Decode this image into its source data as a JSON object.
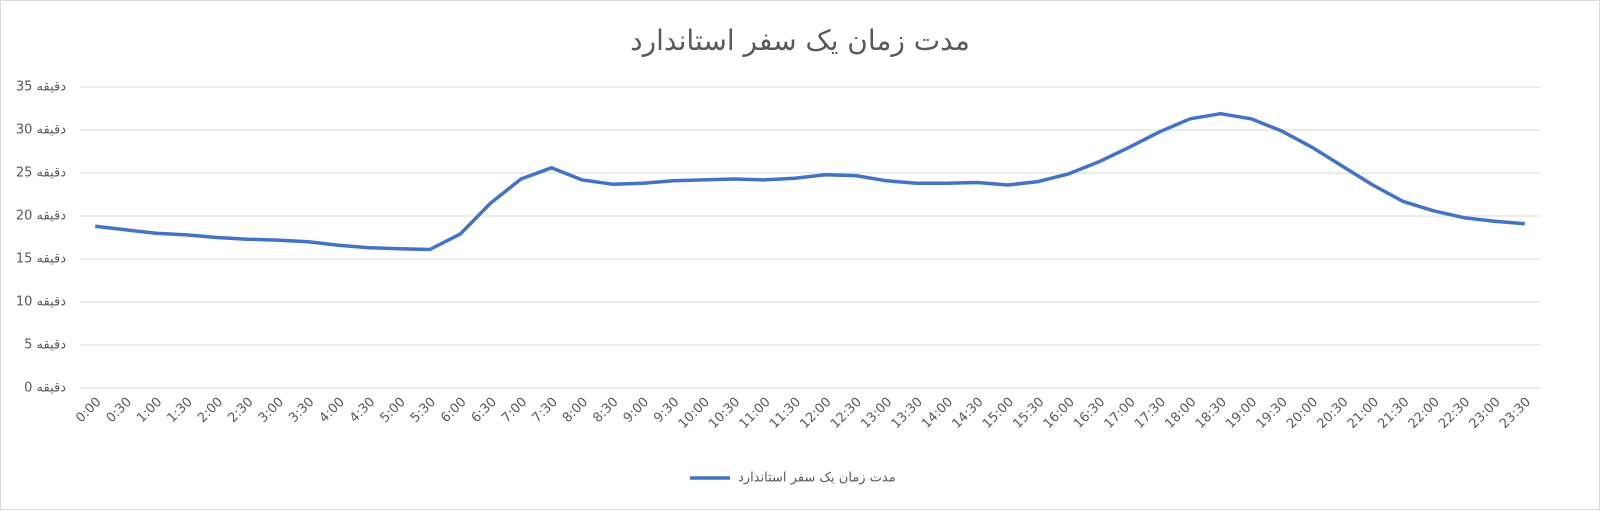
{
  "chart_data": {
    "type": "line",
    "title": "مدت زمان یک سفر استاندارد",
    "categories": [
      "0:00",
      "0:30",
      "1:00",
      "1:30",
      "2:00",
      "2:30",
      "3:00",
      "3:30",
      "4:00",
      "4:30",
      "5:00",
      "5:30",
      "6:00",
      "6:30",
      "7:00",
      "7:30",
      "8:00",
      "8:30",
      "9:00",
      "9:30",
      "10:00",
      "10:30",
      "11:00",
      "11:30",
      "12:00",
      "12:30",
      "13:00",
      "13:30",
      "14:00",
      "14:30",
      "15:00",
      "15:30",
      "16:00",
      "16:30",
      "17:00",
      "17:30",
      "18:00",
      "18:30",
      "19:00",
      "19:30",
      "20:00",
      "20:30",
      "21:00",
      "21:30",
      "22:00",
      "22:30",
      "23:00",
      "23:30"
    ],
    "series": [
      {
        "name": "مدت زمان یک سفر استاندارد",
        "color": "#4472c4",
        "values": [
          18.8,
          18.4,
          18.0,
          17.8,
          17.5,
          17.3,
          17.2,
          17.0,
          16.6,
          16.3,
          16.2,
          16.1,
          17.9,
          21.5,
          24.3,
          25.6,
          24.2,
          23.7,
          23.8,
          24.1,
          24.2,
          24.3,
          24.2,
          24.4,
          24.8,
          24.7,
          24.1,
          23.8,
          23.8,
          23.9,
          23.6,
          24.0,
          24.9,
          26.3,
          28.0,
          29.8,
          31.3,
          31.9,
          31.3,
          29.9,
          28.0,
          25.8,
          23.6,
          21.7,
          20.6,
          19.8,
          19.4,
          19.1
        ]
      }
    ],
    "ylim": [
      0,
      35
    ],
    "yticks": [
      {
        "value": 0,
        "label": "0 دقیقه"
      },
      {
        "value": 5,
        "label": "5 دقیقه"
      },
      {
        "value": 10,
        "label": "10 دقیقه"
      },
      {
        "value": 15,
        "label": "15 دقیقه"
      },
      {
        "value": 20,
        "label": "20 دقیقه"
      },
      {
        "value": 25,
        "label": "25 دقیقه"
      },
      {
        "value": 30,
        "label": "30 دقیقه"
      },
      {
        "value": 35,
        "label": "35 دقیقه"
      }
    ],
    "grid": true,
    "legend": "bottom"
  }
}
